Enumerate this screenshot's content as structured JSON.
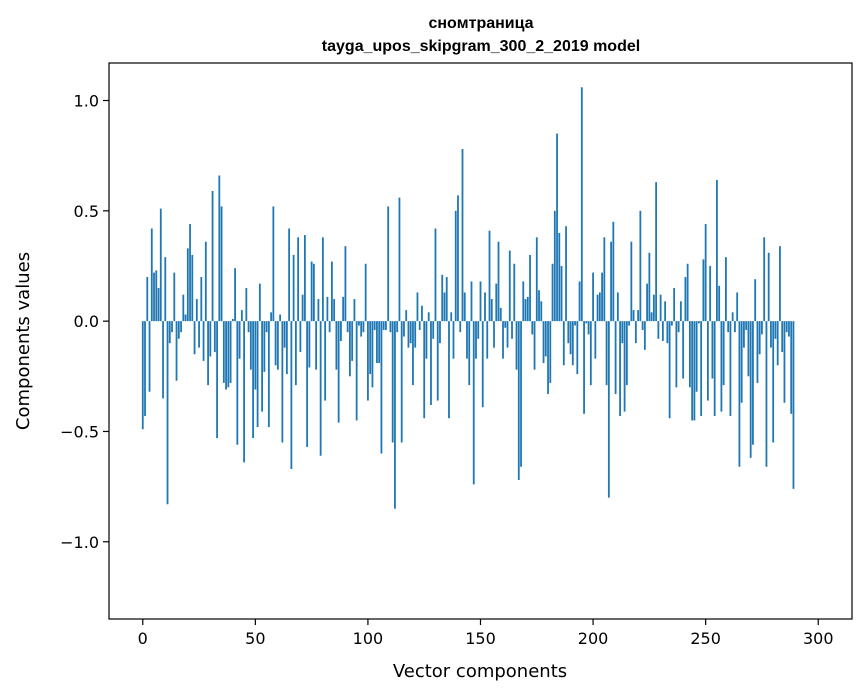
{
  "chart_data": {
    "type": "bar",
    "title": "снoмтраница",
    "subtitle": "tayga_upos_skipgram_300_2_2019 model",
    "xlabel": "Vector components",
    "ylabel": "Components values",
    "xlim": [
      -15,
      315
    ],
    "ylim": [
      -1.35,
      1.17
    ],
    "xticks": [
      0,
      50,
      100,
      150,
      200,
      250,
      300
    ],
    "xtick_labels": [
      "0",
      "50",
      "100",
      "150",
      "200",
      "250",
      "300"
    ],
    "yticks": [
      -1.0,
      -0.5,
      0.0,
      0.5,
      1.0
    ],
    "ytick_labels": [
      "−1.0",
      "−0.5",
      "0.0",
      "0.5",
      "1.0"
    ],
    "bar_color": "#1f77b4",
    "grid": false,
    "values": [
      -0.49,
      -0.43,
      0.2,
      -0.32,
      0.42,
      0.22,
      0.23,
      0.15,
      0.51,
      -0.35,
      0.29,
      -0.83,
      -0.1,
      -0.05,
      0.22,
      -0.27,
      -0.08,
      -0.05,
      0.12,
      0.03,
      0.33,
      0.44,
      0.3,
      -0.15,
      0.1,
      -0.12,
      0.2,
      -0.18,
      0.36,
      -0.29,
      -0.16,
      0.59,
      -0.14,
      -0.53,
      0.66,
      0.52,
      -0.28,
      -0.31,
      -0.3,
      -0.28,
      0.01,
      0.24,
      -0.56,
      -0.17,
      0.05,
      -0.64,
      0.15,
      -0.05,
      -0.22,
      -0.53,
      -0.31,
      -0.48,
      0.17,
      -0.41,
      -0.23,
      -0.05,
      -0.48,
      0.04,
      0.52,
      -0.2,
      -0.22,
      0.03,
      -0.55,
      -0.12,
      -0.24,
      0.42,
      -0.67,
      0.3,
      -0.29,
      0.38,
      -0.14,
      0.12,
      0.39,
      -0.57,
      -0.21,
      0.27,
      0.26,
      -0.22,
      0.1,
      -0.61,
      0.38,
      -0.36,
      0.11,
      -0.05,
      0.27,
      0.1,
      -0.22,
      -0.46,
      -0.09,
      0.11,
      0.34,
      -0.05,
      -0.25,
      -0.18,
      0.1,
      -0.45,
      -0.02,
      -0.07,
      -0.05,
      0.26,
      -0.36,
      -0.24,
      -0.3,
      -0.04,
      -0.19,
      -0.19,
      -0.6,
      -0.04,
      -0.04,
      0.52,
      -0.05,
      -0.55,
      -0.85,
      -0.05,
      0.56,
      -0.55,
      -0.07,
      0.05,
      -0.12,
      -0.1,
      -0.29,
      -0.12,
      0.13,
      -0.04,
      0.07,
      -0.44,
      -0.17,
      0.04,
      -0.38,
      -0.08,
      0.42,
      -0.36,
      -0.1,
      0.21,
      0.13,
      0.2,
      -0.44,
      0.04,
      -0.17,
      0.5,
      0.57,
      -0.05,
      0.78,
      0.13,
      -0.17,
      -0.29,
      0.18,
      -0.74,
      -0.17,
      -0.08,
      0.18,
      -0.39,
      0.13,
      -0.17,
      0.41,
      0.1,
      -0.12,
      0.17,
      0.36,
      0.06,
      -0.17,
      -0.03,
      -0.12,
      0.32,
      -0.08,
      0.26,
      -0.22,
      -0.72,
      -0.66,
      0.18,
      0.1,
      0.11,
      0.3,
      -0.06,
      -0.22,
      0.38,
      0.14,
      0.09,
      -0.19,
      -0.16,
      -0.33,
      -0.28,
      0.26,
      0.5,
      0.85,
      0.4,
      0.25,
      -0.2,
      0.43,
      -0.1,
      -0.15,
      -0.2,
      -0.02,
      -0.24,
      0.18,
      1.06,
      -0.42,
      -0.01,
      -0.06,
      -0.29,
      0.22,
      -0.17,
      0.12,
      0.13,
      0.22,
      0.38,
      -0.29,
      -0.8,
      0.36,
      0.45,
      -0.33,
      0.13,
      -0.43,
      -0.1,
      -0.41,
      -0.29,
      -0.02,
      0.36,
      0.05,
      -0.1,
      0.05,
      0.5,
      -0.04,
      -0.13,
      0.17,
      0.31,
      0.04,
      0.12,
      0.63,
      -0.08,
      0.12,
      -0.09,
      0.09,
      -0.1,
      -0.44,
      -0.02,
      0.15,
      -0.3,
      -0.05,
      0.09,
      -0.26,
      0.2,
      0.26,
      -0.3,
      -0.45,
      -0.45,
      -0.32,
      -0.01,
      -0.43,
      0.28,
      0.44,
      -0.36,
      0.25,
      -0.26,
      -0.43,
      0.64,
      0.16,
      -0.41,
      -0.29,
      0.29,
      -0.05,
      -0.43,
      0.04,
      -0.05,
      0.13,
      -0.66,
      -0.37,
      -0.12,
      -0.04,
      -0.25,
      -0.62,
      -0.56,
      0.19,
      -0.28,
      -0.15,
      -0.06,
      0.38,
      -0.66,
      0.31,
      -0.12,
      -0.55,
      -0.08,
      -0.2,
      0.34,
      -0.14,
      -0.37,
      -0.05,
      -0.07,
      -0.42,
      -0.76
    ]
  }
}
